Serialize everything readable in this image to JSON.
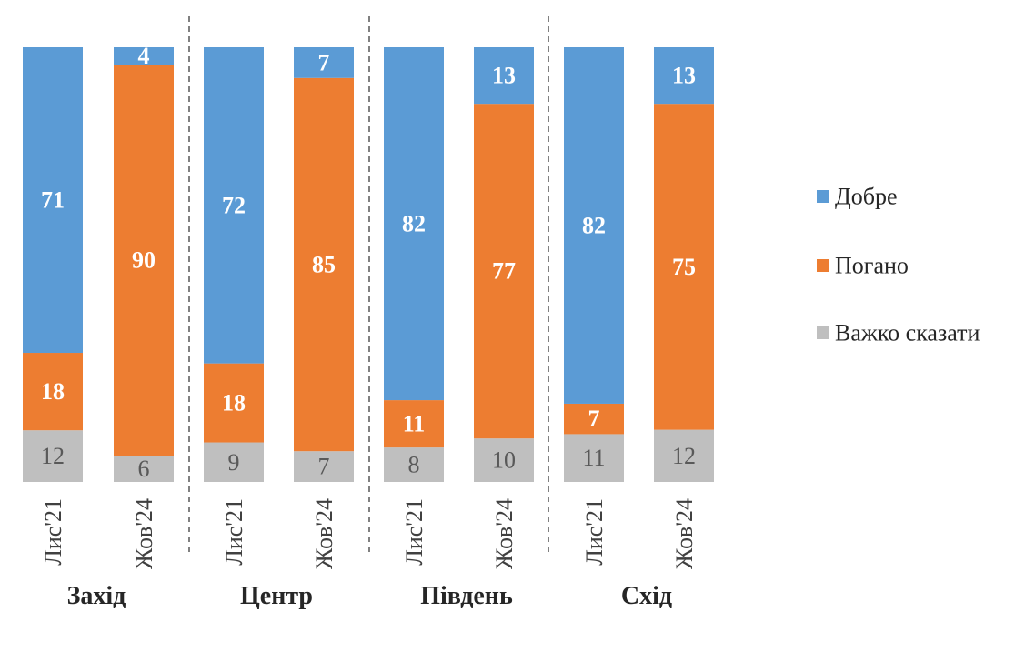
{
  "chart_data": {
    "type": "bar",
    "stacked": true,
    "orientation": "vertical",
    "ylim": [
      0,
      100
    ],
    "grid": false,
    "legend_position": "right",
    "groups": [
      {
        "name": "Захід",
        "categories": [
          "Лис'21",
          "Жов'24"
        ]
      },
      {
        "name": "Центр",
        "categories": [
          "Лис'21",
          "Жов'24"
        ]
      },
      {
        "name": "Південь",
        "categories": [
          "Лис'21",
          "Жов'24"
        ]
      },
      {
        "name": "Схід",
        "categories": [
          "Лис'21",
          "Жов'24"
        ]
      }
    ],
    "categories": [
      "Лис'21",
      "Жов'24",
      "Лис'21",
      "Жов'24",
      "Лис'21",
      "Жов'24",
      "Лис'21",
      "Жов'24"
    ],
    "series": [
      {
        "name": "Важко сказати",
        "color": "#bfbfbf",
        "values": [
          12,
          6,
          9,
          7,
          8,
          10,
          11,
          12
        ]
      },
      {
        "name": "Погано",
        "color": "#ed7d31",
        "values": [
          18,
          90,
          18,
          85,
          11,
          77,
          7,
          75
        ]
      },
      {
        "name": "Добре",
        "color": "#5b9bd5",
        "values": [
          71,
          4,
          72,
          7,
          82,
          13,
          82,
          13
        ]
      }
    ],
    "legend": [
      "Добре",
      "Погано",
      "Важко сказати"
    ]
  }
}
